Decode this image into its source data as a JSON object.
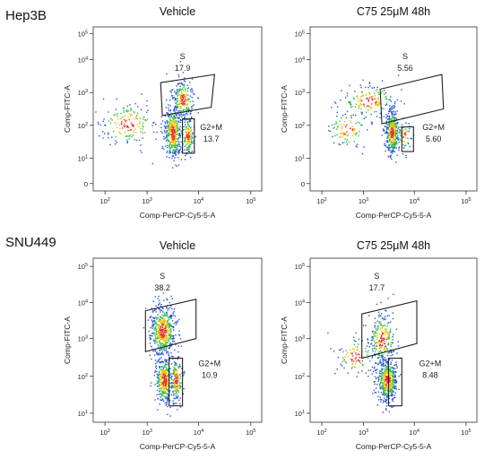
{
  "figure": {
    "cell_lines": [
      "Hep3B",
      "SNU449"
    ]
  },
  "chart_data": [
    {
      "type": "scatter",
      "cell_line": "Hep3B",
      "title": "Vehicle",
      "xlabel": "Comp-PerCP-Cy5-5-A",
      "ylabel": "Comp-FITC-A",
      "xscale": "log",
      "yscale": "log",
      "xticks": [
        "10^2",
        "10^3",
        "10^4",
        "10^5"
      ],
      "yticks": [
        "0",
        "10^1",
        "10^2",
        "10^3",
        "10^4",
        "10^5"
      ],
      "gates": [
        {
          "name": "S",
          "percent": "17.9"
        },
        {
          "name": "G2+M",
          "percent": "13.7"
        }
      ]
    },
    {
      "type": "scatter",
      "cell_line": "Hep3B",
      "title": "C75 25μM 48h",
      "xlabel": "Comp-PerCP-Cy5-5-A",
      "ylabel": "Comp-FITC-A",
      "xscale": "log",
      "yscale": "log",
      "xticks": [
        "10^2",
        "10^3",
        "10^4",
        "10^5"
      ],
      "yticks": [
        "0",
        "10^1",
        "10^2",
        "10^3",
        "10^4",
        "10^5"
      ],
      "gates": [
        {
          "name": "S",
          "percent": "5.56"
        },
        {
          "name": "G2+M",
          "percent": "5.60"
        }
      ]
    },
    {
      "type": "scatter",
      "cell_line": "SNU449",
      "title": "Vehicle",
      "xlabel": "Comp-PerCP-Cy5-5-A",
      "ylabel": "Comp-FITC-A",
      "xscale": "log",
      "yscale": "log",
      "xticks": [
        "10^2",
        "10^3",
        "10^4",
        "10^5"
      ],
      "yticks": [
        "10^1",
        "10^2",
        "10^3",
        "10^4",
        "10^5"
      ],
      "gates": [
        {
          "name": "S",
          "percent": "38.2"
        },
        {
          "name": "G2+M",
          "percent": "10.9"
        }
      ]
    },
    {
      "type": "scatter",
      "cell_line": "SNU449",
      "title": "C75 25μM 48h",
      "xlabel": "Comp-PerCP-Cy5-5-A",
      "ylabel": "Comp-FITC-A",
      "xscale": "log",
      "yscale": "log",
      "xticks": [
        "10^2",
        "10^3",
        "10^4",
        "10^5"
      ],
      "yticks": [
        "10^1",
        "10^2",
        "10^3",
        "10^4",
        "10^5"
      ],
      "gates": [
        {
          "name": "S",
          "percent": "17.7"
        },
        {
          "name": "G2+M",
          "percent": "8.48"
        }
      ]
    }
  ]
}
